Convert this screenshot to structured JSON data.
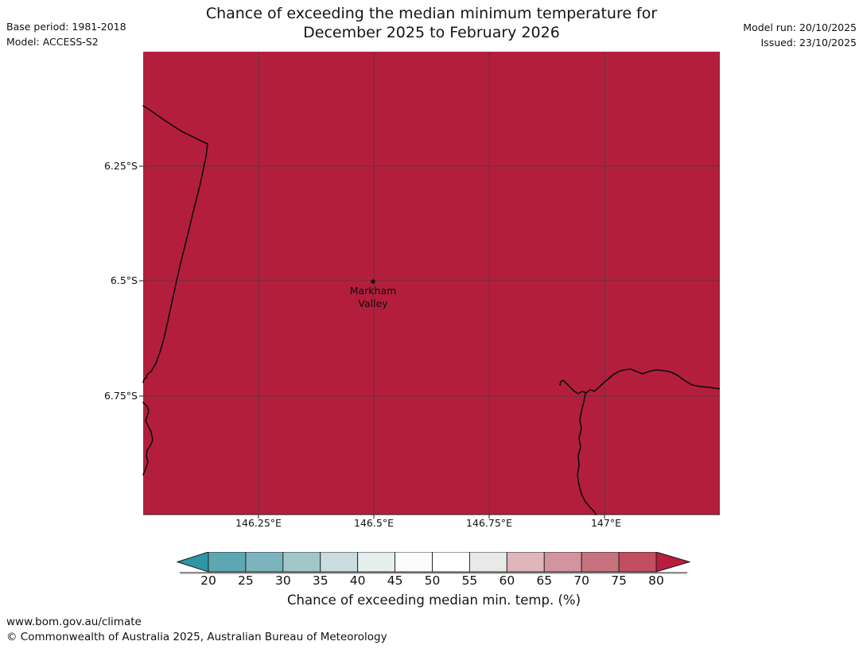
{
  "header": {
    "title_line1": "Chance of exceeding the median minimum temperature for",
    "title_line2": "December 2025 to February 2026",
    "base_period": "Base period: 1981-2018",
    "model": "Model: ACCESS-S2",
    "model_run": "Model run: 20/10/2025",
    "issued": "Issued: 23/10/2025"
  },
  "map": {
    "fill_color": "#b41e3d",
    "coast_color": "#0b0b0b",
    "grid_color": "#3c3c3c",
    "marker": {
      "name_line1": "Markham",
      "name_line2": "Valley",
      "lat": "6.5°S",
      "lon": "146.5°E"
    },
    "lat_labels": [
      "6.25°S",
      "6.5°S",
      "6.75°S"
    ],
    "lon_labels": [
      "146.25°E",
      "146.5°E",
      "146.75°E",
      "147°E"
    ]
  },
  "chart_data": {
    "type": "heatmap",
    "title": "Chance of exceeding the median minimum temperature for December 2025 to February 2026",
    "subtitle_model": "ACCESS-S2, base period 1981-2018, model run 20/10/2025, issued 23/10/2025",
    "lon_ticks": [
      "146.25°E",
      "146.5°E",
      "146.75°E",
      "147°E"
    ],
    "lat_ticks": [
      "6.25°S",
      "6.5°S",
      "6.75°S"
    ],
    "observed_value": "Entire mapped region shaded in the >80% chance class (dark red)",
    "marker_point": {
      "label": "Markham Valley",
      "lon": "146.5°E",
      "lat": "6.5°S"
    },
    "colorbar": {
      "label": "Chance of exceeding median min. temp. (%)",
      "tick_labels": [
        "20",
        "25",
        "30",
        "35",
        "40",
        "45",
        "50",
        "55",
        "60",
        "65",
        "70",
        "75",
        "80"
      ],
      "segment_colors": [
        "#5da7b3",
        "#7cb4bd",
        "#a3c6cb",
        "#cbdcde",
        "#e6eeee",
        "#fafcfc",
        "#ffffff",
        "#e9e9e8",
        "#e0b5bc",
        "#d2949f",
        "#c7737f",
        "#c24e61"
      ],
      "under_arrow_color": "#2d95a4",
      "over_arrow_color": "#b91d3d"
    }
  },
  "footer": {
    "url": "www.bom.gov.au/climate",
    "copyright": "© Commonwealth of Australia 2025, Australian Bureau of Meteorology"
  }
}
